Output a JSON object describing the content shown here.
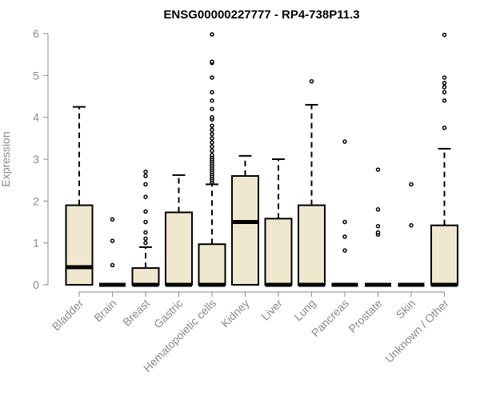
{
  "chart_data": {
    "type": "box",
    "title": "ENSG00000227777 - RP4-738P11.3",
    "xlabel": "",
    "ylabel": "Expression",
    "ylim": [
      0,
      6
    ],
    "yticks": [
      0,
      1,
      2,
      3,
      4,
      5,
      6
    ],
    "box_fill": "#efe8cf",
    "categories": [
      "Bladder",
      "Brain",
      "Breast",
      "Gastric",
      "Hematopoietic cells",
      "Kidney",
      "Liver",
      "Lung",
      "Pancreas",
      "Prostate",
      "Skin",
      "Unknown / Other"
    ],
    "boxes": [
      {
        "label": "Bladder",
        "q1": 0,
        "median": 0.42,
        "q3": 1.9,
        "whisker_low": 0,
        "whisker_high": 4.25,
        "outliers": []
      },
      {
        "label": "Brain",
        "q1": 0,
        "median": 0,
        "q3": 0,
        "whisker_low": 0,
        "whisker_high": 0,
        "outliers": [
          0.47,
          1.05,
          1.56
        ]
      },
      {
        "label": "Breast",
        "q1": 0,
        "median": 0,
        "q3": 0.4,
        "whisker_low": 0,
        "whisker_high": 0.9,
        "outliers": [
          1.0,
          1.1,
          1.25,
          1.5,
          1.75,
          2.1,
          2.4,
          2.6,
          2.7
        ]
      },
      {
        "label": "Gastric",
        "q1": 0,
        "median": 0,
        "q3": 1.73,
        "whisker_low": 0,
        "whisker_high": 2.62,
        "outliers": []
      },
      {
        "label": "Hematopoietic cells",
        "q1": 0,
        "median": 0,
        "q3": 0.97,
        "whisker_low": 0,
        "whisker_high": 2.4,
        "outliers": [
          2.45,
          2.5,
          2.55,
          2.6,
          2.65,
          2.7,
          2.75,
          2.8,
          2.85,
          2.9,
          2.95,
          3.0,
          3.05,
          3.1,
          3.2,
          3.3,
          3.4,
          3.5,
          3.6,
          3.7,
          3.8,
          3.95,
          4.0,
          4.2,
          4.4,
          4.6,
          4.95,
          5.3,
          5.33,
          5.98
        ]
      },
      {
        "label": "Kidney",
        "q1": 0,
        "median": 1.5,
        "q3": 2.6,
        "whisker_low": 0,
        "whisker_high": 3.08,
        "outliers": []
      },
      {
        "label": "Liver",
        "q1": 0,
        "median": 0,
        "q3": 1.58,
        "whisker_low": 0,
        "whisker_high": 3.0,
        "outliers": []
      },
      {
        "label": "Lung",
        "q1": 0,
        "median": 0,
        "q3": 1.9,
        "whisker_low": 0,
        "whisker_high": 4.3,
        "outliers": [
          4.86
        ]
      },
      {
        "label": "Pancreas",
        "q1": 0,
        "median": 0,
        "q3": 0,
        "whisker_low": 0,
        "whisker_high": 0,
        "outliers": [
          0.82,
          1.15,
          1.5,
          3.42
        ]
      },
      {
        "label": "Prostate",
        "q1": 0,
        "median": 0,
        "q3": 0,
        "whisker_low": 0,
        "whisker_high": 0,
        "outliers": [
          1.2,
          1.25,
          1.4,
          1.8,
          2.75
        ]
      },
      {
        "label": "Skin",
        "q1": 0,
        "median": 0,
        "q3": 0,
        "whisker_low": 0,
        "whisker_high": 0,
        "outliers": [
          1.42,
          2.4
        ]
      },
      {
        "label": "Unknown / Other",
        "q1": 0,
        "median": 0,
        "q3": 1.42,
        "whisker_low": 0,
        "whisker_high": 3.25,
        "outliers": [
          3.75,
          4.4,
          4.6,
          4.72,
          4.82,
          4.95,
          5.97
        ]
      }
    ],
    "grid": false,
    "legend": "none"
  }
}
